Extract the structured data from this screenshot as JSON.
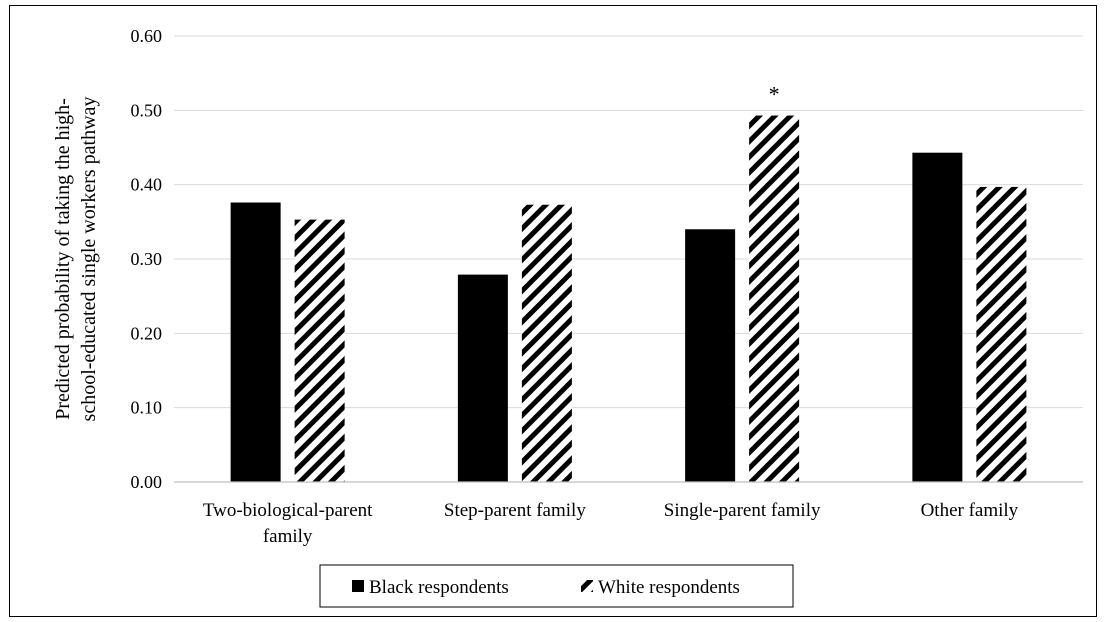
{
  "chart_data": {
    "type": "bar",
    "categories": [
      [
        "Two-biological-parent",
        "family"
      ],
      [
        "Step-parent family"
      ],
      [
        "Single-parent family"
      ],
      [
        "Other family"
      ]
    ],
    "series": [
      {
        "name": "Black respondents",
        "values": [
          0.376,
          0.279,
          0.34,
          0.443
        ],
        "fill": "solid",
        "color": "#000000"
      },
      {
        "name": "White respondents",
        "values": [
          0.353,
          0.373,
          0.493,
          0.397
        ],
        "fill": "diagonal-hatch",
        "color": "#000000"
      }
    ],
    "ylabel": [
      "Predicted probability of taking the high-",
      "school-educated single workers pathway"
    ],
    "ylim": [
      0,
      0.6
    ],
    "yticks": [
      "0.00",
      "0.10",
      "0.20",
      "0.30",
      "0.40",
      "0.50",
      "0.60"
    ],
    "grid": true,
    "grid_color": "#d9d9d9",
    "legend_position": "bottom",
    "annotations": [
      {
        "text": "*",
        "category_index": 2,
        "series_index": 1
      }
    ]
  }
}
